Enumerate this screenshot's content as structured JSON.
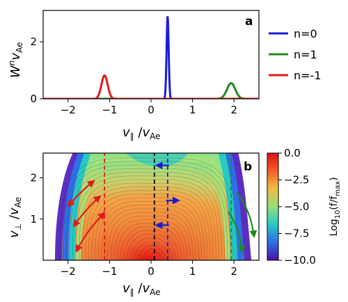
{
  "colors": {
    "n0": "#1c1cd6",
    "n1": "#1f8a1f",
    "nm1": "#e01b1b",
    "cbar_stops": [
      "#4b0fa8",
      "#2f6fe6",
      "#28c9c4",
      "#96e17a",
      "#f2b843",
      "#f35a2a",
      "#dd1414"
    ]
  },
  "chart_data": [
    {
      "id": "a",
      "type": "line",
      "panel_label": "a",
      "xlabel": "v∥ /vAe",
      "ylabel": "Wⁿ vAe",
      "xlim": [
        -2.6,
        2.6
      ],
      "ylim": [
        0,
        3.1
      ],
      "xticks": [
        -2,
        -1,
        0,
        1,
        2
      ],
      "yticks": [
        0,
        2
      ],
      "tick_labels_x": [
        "−2",
        "−1",
        "0",
        "1",
        "2"
      ],
      "tick_labels_y": [
        "0",
        "2"
      ],
      "legend_position": "right, outside",
      "series": [
        {
          "name": "n=0",
          "color": "#1c1cd6",
          "peak_x": 0.4,
          "peak_y": 2.9,
          "width": 0.025
        },
        {
          "name": "n=1",
          "color": "#1f8a1f",
          "peak_x": 1.93,
          "peak_y": 0.55,
          "width": 0.1
        },
        {
          "name": "n=-1",
          "color": "#e01b1b",
          "peak_x": -1.12,
          "peak_y": 0.82,
          "width": 0.075
        }
      ]
    },
    {
      "id": "b",
      "type": "heatmap",
      "panel_label": "b",
      "xlabel": "v∥ /vAe",
      "ylabel": "v⊥ /vAe",
      "xlim": [
        -2.6,
        2.6
      ],
      "ylim": [
        0,
        2.6
      ],
      "xticks": [
        -2,
        -1,
        0,
        1,
        2
      ],
      "yticks": [
        1,
        2
      ],
      "tick_labels_x": [
        "−2",
        "−1",
        "0",
        "1",
        "2"
      ],
      "tick_labels_y": [
        "1",
        "2"
      ],
      "colorbar": {
        "label": "Log₁₀(f/f_max)",
        "range": [
          -10.0,
          0.0
        ],
        "ticks": [
          0.0,
          -2.5,
          -5.0,
          -7.5,
          -10.0
        ],
        "tick_labels": [
          "0.0",
          "−2.5",
          "−5.0",
          "−7.5",
          "−10.0"
        ]
      },
      "resonance_lines": [
        {
          "name": "n=-1",
          "x": -1.12,
          "color": "#e01b1b"
        },
        {
          "name": "n=0",
          "x": 0.08,
          "color": "#000000"
        },
        {
          "name": "n=0",
          "x": 0.4,
          "color": "#1c1cd6"
        },
        {
          "name": "n=1",
          "x": 1.93,
          "color": "#1f8a1f"
        }
      ],
      "blue_arrows_y": [
        2.3,
        1.45,
        0.85
      ]
    }
  ]
}
